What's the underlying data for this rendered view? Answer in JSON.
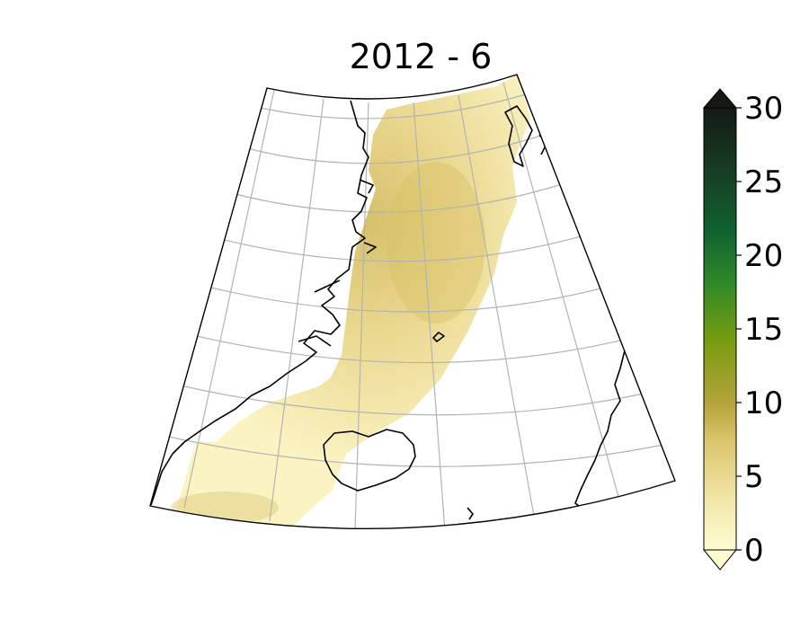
{
  "title": "2012 - 6",
  "colorbar": {
    "ticks": [
      "0",
      "5",
      "10",
      "15",
      "20",
      "25",
      "30"
    ],
    "min": 0,
    "max": 30,
    "extend": "both",
    "colors": [
      "#fffcd2",
      "#f1e6a6",
      "#d9c46a",
      "#b6a43c",
      "#7a9c10",
      "#2f8a27",
      "#0f6330",
      "#173f24",
      "#141a12"
    ]
  },
  "map": {
    "region": "Greenland Sea / Fram Strait / Iceland",
    "gridlines": true,
    "coastlines": true,
    "field_color_range": [
      "#fdf6c0",
      "#d8c26a"
    ]
  }
}
